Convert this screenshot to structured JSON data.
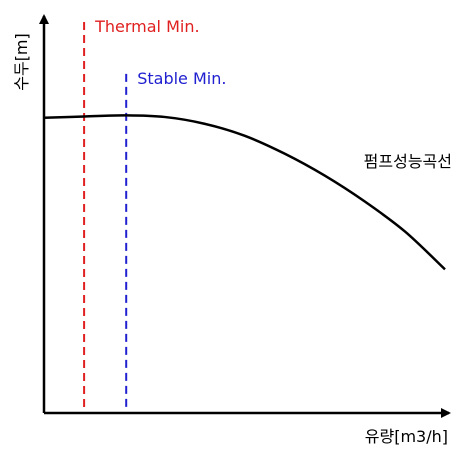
{
  "chart_data": {
    "type": "line",
    "title": "",
    "xlabel": "유량[m3/h]",
    "ylabel": "수두[m]",
    "grid": false,
    "xlim": [
      0,
      100
    ],
    "ylim": [
      0,
      100
    ],
    "series": [
      {
        "name": "펌프성능곡선",
        "color": "#000000",
        "x": [
          0,
          10,
          20,
          30,
          40,
          50,
          60,
          70,
          80,
          90,
          100
        ],
        "y": [
          74,
          74.3,
          74.6,
          74.2,
          72.5,
          69.5,
          65,
          59.5,
          53,
          45.5,
          36
        ]
      }
    ],
    "reference_lines": [
      {
        "label": "Thermal Min.",
        "x": 10,
        "color": "#e02020",
        "top": 98
      },
      {
        "label": "Stable Min.",
        "x": 20.5,
        "color": "#2020d0",
        "top": 85
      }
    ]
  }
}
